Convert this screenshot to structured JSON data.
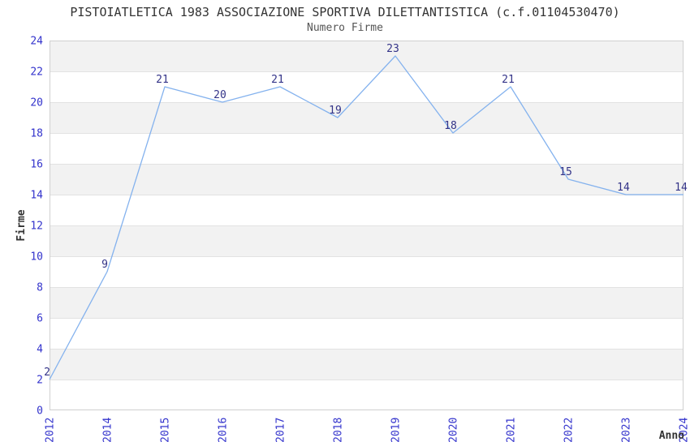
{
  "chart_data": {
    "type": "line",
    "title": "PISTOIATLETICA 1983 ASSOCIAZIONE SPORTIVA DILETTANTISTICA (c.f.01104530470)",
    "subtitle": "Numero Firme",
    "xlabel": "Anno",
    "ylabel": "Firme",
    "categories": [
      "2012",
      "2014",
      "2015",
      "2016",
      "2017",
      "2018",
      "2019",
      "2020",
      "2021",
      "2022",
      "2023",
      "2024"
    ],
    "values": [
      2,
      9,
      21,
      20,
      21,
      19,
      23,
      18,
      21,
      15,
      14,
      14
    ],
    "ylim": [
      0,
      24
    ],
    "ytick_step": 2,
    "grid": true,
    "legend": "none",
    "band_fill": true,
    "colors": {
      "line": "#84b2ee",
      "tick_label": "#3333cc",
      "data_label": "#333388",
      "band": "#f2f2f2",
      "grid": "#e2e2e2",
      "border": "#d0d0d0",
      "title": "#333333",
      "subtitle": "#555555",
      "axis_title": "#333333",
      "background": "#ffffff"
    }
  }
}
